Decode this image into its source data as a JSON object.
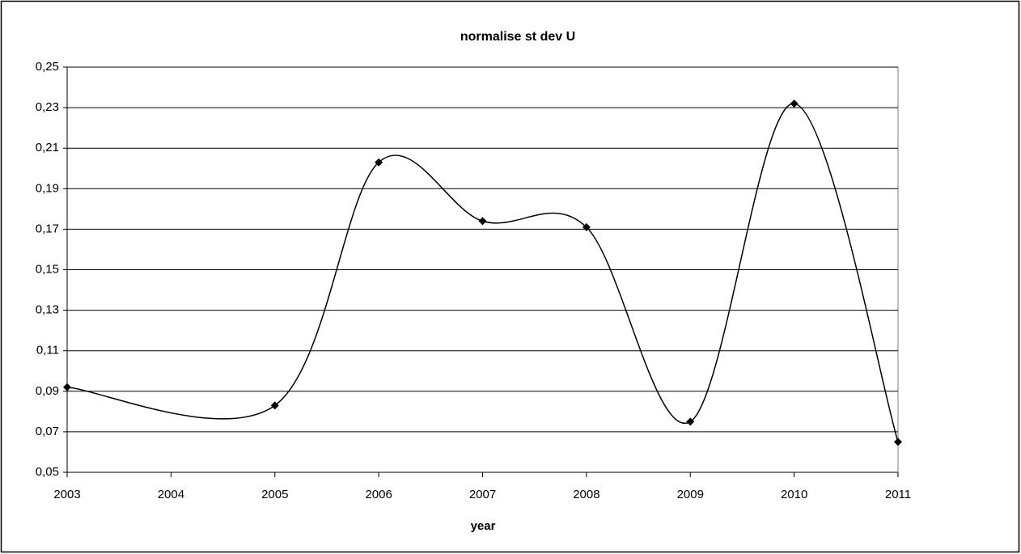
{
  "chart_data": {
    "type": "line",
    "title": "normalise st dev U",
    "x_label": "year",
    "x": [
      2003,
      2005,
      2006,
      2007,
      2008,
      2009,
      2010,
      2011
    ],
    "series": [
      {
        "name": "normalise st dev U",
        "color": "#000000",
        "values": [
          0.092,
          0.083,
          0.203,
          0.174,
          0.171,
          0.075,
          0.232,
          0.065
        ]
      }
    ],
    "xlim": [
      2003,
      2011
    ],
    "xticks": [
      2003,
      2004,
      2005,
      2006,
      2007,
      2008,
      2009,
      2010,
      2011
    ],
    "ylim": [
      0.05,
      0.25
    ],
    "yticks": [
      {
        "value": 0.05,
        "label": "0,05"
      },
      {
        "value": 0.07,
        "label": "0,07"
      },
      {
        "value": 0.09,
        "label": "0,09"
      },
      {
        "value": 0.11,
        "label": "0,11"
      },
      {
        "value": 0.13,
        "label": "0,13"
      },
      {
        "value": 0.15,
        "label": "0,15"
      },
      {
        "value": 0.17,
        "label": "0,17"
      },
      {
        "value": 0.19,
        "label": "0,19"
      },
      {
        "value": 0.21,
        "label": "0,21"
      },
      {
        "value": 0.23,
        "label": "0,23"
      },
      {
        "value": 0.25,
        "label": "0,25"
      }
    ],
    "grid": true,
    "smooth": true
  }
}
